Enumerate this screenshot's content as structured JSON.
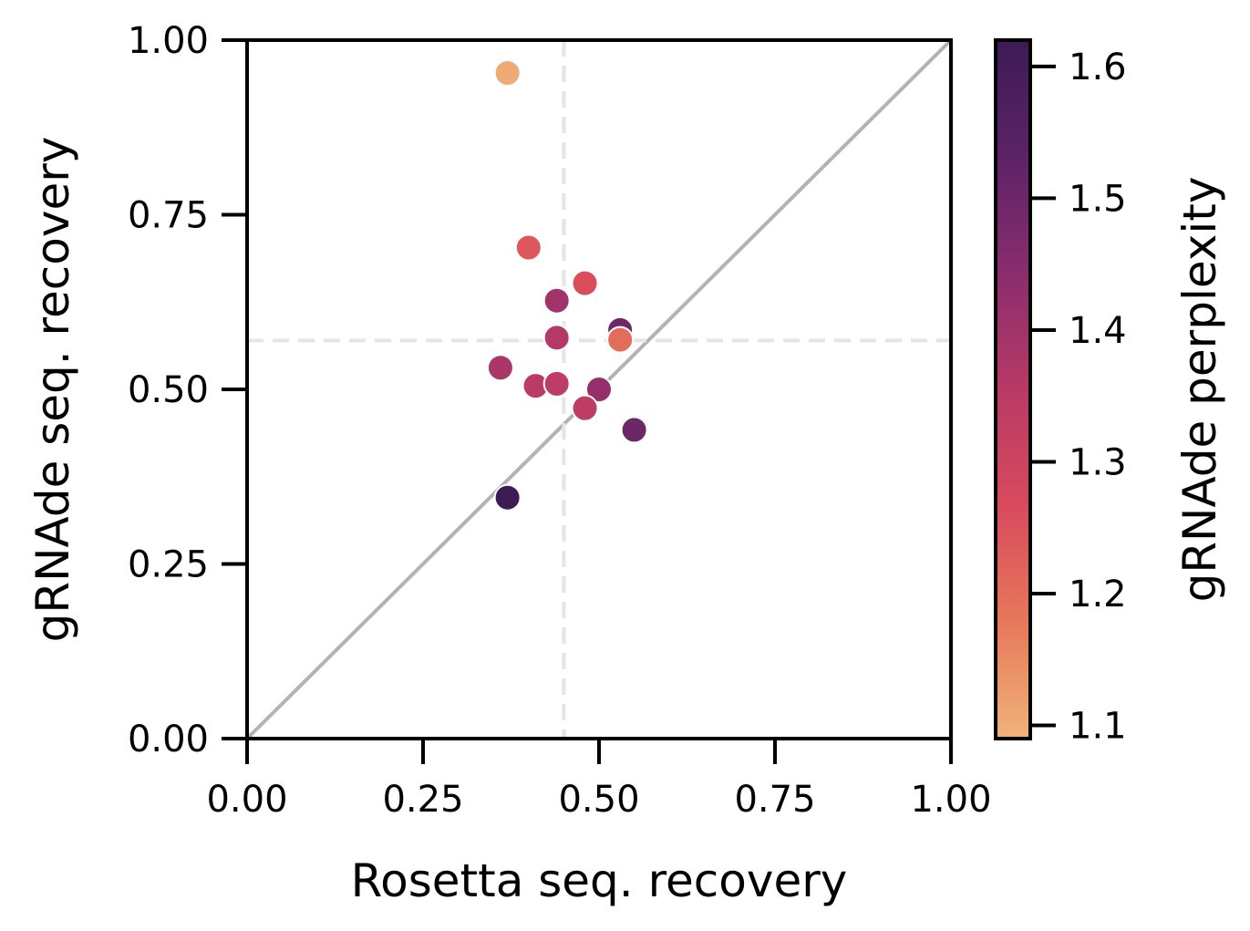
{
  "chart_data": {
    "type": "scatter",
    "title": "",
    "xlabel": "Rosetta seq. recovery",
    "ylabel": "gRNAde seq. recovery",
    "xlim": [
      0,
      1
    ],
    "ylim": [
      0,
      1
    ],
    "xticks": [
      "0.00",
      "0.25",
      "0.50",
      "0.75",
      "1.00"
    ],
    "yticks": [
      "0.00",
      "0.25",
      "0.50",
      "0.75",
      "1.00"
    ],
    "grid": false,
    "reference_lines": {
      "diagonal": "y = x",
      "vertical_x": 0.45,
      "horizontal_y": 0.57
    },
    "colorbar": {
      "label": "gRNAde perplexity",
      "range": [
        1.09,
        1.62
      ],
      "ticks": [
        "1.1",
        "1.2",
        "1.3",
        "1.4",
        "1.5",
        "1.6"
      ],
      "tick_values": [
        1.1,
        1.2,
        1.3,
        1.4,
        1.5,
        1.6
      ],
      "colormap": [
        "#f0b27a",
        "#e7785b",
        "#d84a5d",
        "#b83a66",
        "#8a2d6e",
        "#5c2366",
        "#3d1b55"
      ]
    },
    "points": [
      {
        "x": 0.37,
        "y": 0.953,
        "perplexity": 1.1
      },
      {
        "x": 0.4,
        "y": 0.703,
        "perplexity": 1.24
      },
      {
        "x": 0.48,
        "y": 0.652,
        "perplexity": 1.26
      },
      {
        "x": 0.44,
        "y": 0.627,
        "perplexity": 1.4
      },
      {
        "x": 0.53,
        "y": 0.585,
        "perplexity": 1.5
      },
      {
        "x": 0.44,
        "y": 0.574,
        "perplexity": 1.36
      },
      {
        "x": 0.53,
        "y": 0.571,
        "perplexity": 1.2
      },
      {
        "x": 0.36,
        "y": 0.531,
        "perplexity": 1.38
      },
      {
        "x": 0.41,
        "y": 0.505,
        "perplexity": 1.35
      },
      {
        "x": 0.44,
        "y": 0.508,
        "perplexity": 1.34
      },
      {
        "x": 0.5,
        "y": 0.5,
        "perplexity": 1.42
      },
      {
        "x": 0.48,
        "y": 0.473,
        "perplexity": 1.34
      },
      {
        "x": 0.55,
        "y": 0.442,
        "perplexity": 1.5
      },
      {
        "x": 0.37,
        "y": 0.345,
        "perplexity": 1.62
      }
    ]
  }
}
